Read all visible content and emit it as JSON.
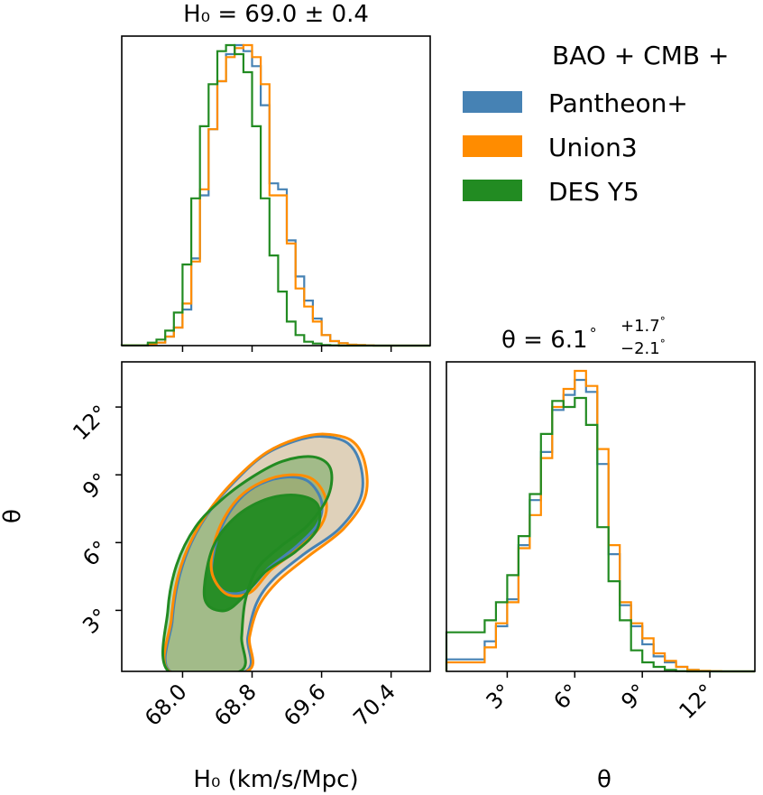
{
  "chart_data": {
    "type": "corner",
    "legend": {
      "title": "BAO + CMB +",
      "entries": [
        "Pantheon+",
        "Union3",
        "DES Y5"
      ],
      "placement": "top-right"
    },
    "colors": {
      "Pantheon+": "#4682b4",
      "Union3": "#ff8c00",
      "DES Y5": "#228b22"
    },
    "h0_title": "H₀ = 69.0 ± 0.4",
    "theta_title": {
      "main": "θ = 6.1",
      "plus": "+1.7",
      "minus": "−2.1",
      "unit": "°"
    },
    "xlabel_h0": "H₀ (km/s/Mpc)",
    "xlabel_theta": "θ",
    "ylabel_theta": "θ",
    "h0_range": [
      67.3,
      70.85
    ],
    "theta_range": [
      0.3,
      14.0
    ],
    "h0_ticks": [
      "68.0",
      "68.8",
      "69.6",
      "70.4"
    ],
    "theta_ticks": [
      "3°",
      "6°",
      "9°",
      "12°"
    ],
    "h0_hist": {
      "edges": [
        67.3,
        67.6,
        67.7,
        67.8,
        67.9,
        68.0,
        68.1,
        68.2,
        68.3,
        68.4,
        68.5,
        68.6,
        68.7,
        68.8,
        68.9,
        69.0,
        69.1,
        69.2,
        69.3,
        69.4,
        69.5,
        69.6,
        69.7,
        69.8,
        69.9,
        70.0,
        70.1,
        70.2,
        70.85
      ],
      "series": [
        {
          "name": "Pantheon+",
          "values": [
            0.1,
            0.5,
            1.0,
            3.0,
            6.0,
            12.0,
            29.0,
            50.0,
            72.0,
            88.0,
            97.0,
            100.0,
            98.0,
            93.0,
            80.0,
            54.0,
            52.0,
            35.0,
            23.0,
            15.0,
            9.0,
            3.5,
            1.5,
            0.8,
            0.3,
            0.2,
            0.1,
            0.0
          ]
        },
        {
          "name": "Union3",
          "values": [
            0.1,
            0.5,
            1.0,
            3.0,
            6.0,
            14.0,
            28.0,
            52.0,
            72.0,
            88.0,
            96.0,
            99.0,
            100.0,
            96.0,
            87.0,
            50.0,
            50.0,
            34.0,
            19.0,
            13.0,
            8.0,
            3.5,
            1.5,
            0.8,
            0.3,
            0.2,
            0.1,
            0.0
          ]
        },
        {
          "name": "DES Y5",
          "values": [
            0.1,
            1.0,
            2.0,
            5.0,
            11.0,
            27.0,
            49.0,
            73.0,
            87.0,
            98.0,
            100.0,
            97.0,
            91.0,
            73.0,
            49.0,
            30.0,
            18.0,
            8.0,
            3.5,
            1.3,
            0.7,
            0.2,
            0.1,
            0.0,
            0.0,
            0.0,
            0.0,
            0.0
          ]
        }
      ]
    },
    "theta_hist": {
      "edges": [
        0.3,
        2.0,
        2.5,
        3.0,
        3.5,
        4.0,
        4.5,
        5.0,
        5.5,
        6.0,
        6.5,
        7.0,
        7.5,
        8.0,
        8.5,
        9.0,
        9.5,
        10.0,
        10.5,
        11.0,
        11.5,
        12.0,
        12.5,
        14.0
      ],
      "series": [
        {
          "name": "Pantheon+",
          "values": [
            4.0,
            10.0,
            15.0,
            24.0,
            42.0,
            57.0,
            73.0,
            87.0,
            92.0,
            97.0,
            93.0,
            69.0,
            39.0,
            22.0,
            15.0,
            9.0,
            5.0,
            3.0,
            1.5,
            0.5,
            0.1,
            0.0,
            0.0
          ]
        },
        {
          "name": "Union3",
          "values": [
            3.0,
            8.0,
            16.0,
            23.0,
            41.0,
            52.0,
            71.0,
            88.0,
            94.0,
            100.0,
            95.0,
            74.0,
            42.0,
            23.0,
            16.0,
            11.0,
            6.0,
            3.5,
            1.5,
            0.5,
            0.2,
            0.1,
            0.0
          ]
        },
        {
          "name": "DES Y5",
          "values": [
            13.0,
            17.0,
            23.0,
            32.0,
            45.0,
            59.0,
            79.0,
            90.0,
            88.0,
            91.0,
            82.0,
            48.0,
            30.0,
            17.0,
            7.0,
            3.0,
            1.5,
            0.5,
            0.1,
            0.0,
            0.0,
            0.0,
            0.0
          ]
        }
      ]
    },
    "contours": [
      {
        "name": "Pantheon+",
        "level": "outer",
        "points": [
          [
            67.86,
            0.3
          ],
          [
            67.88,
            2.5
          ],
          [
            67.95,
            4.3
          ],
          [
            68.1,
            6.0
          ],
          [
            68.35,
            7.6
          ],
          [
            68.65,
            8.9
          ],
          [
            68.95,
            9.9
          ],
          [
            69.3,
            10.5
          ],
          [
            69.6,
            10.7
          ],
          [
            69.9,
            10.4
          ],
          [
            70.05,
            9.4
          ],
          [
            70.05,
            8.0
          ],
          [
            69.8,
            6.6
          ],
          [
            69.4,
            5.5
          ],
          [
            69.05,
            4.4
          ],
          [
            68.85,
            3.3
          ],
          [
            68.75,
            1.8
          ],
          [
            68.72,
            0.3
          ]
        ]
      },
      {
        "name": "Pantheon+",
        "level": "inner",
        "points": [
          [
            68.35,
            5.4
          ],
          [
            68.45,
            6.7
          ],
          [
            68.65,
            7.9
          ],
          [
            68.9,
            8.6
          ],
          [
            69.2,
            8.9
          ],
          [
            69.45,
            8.7
          ],
          [
            69.6,
            7.8
          ],
          [
            69.55,
            6.8
          ],
          [
            69.3,
            5.8
          ],
          [
            69.0,
            4.9
          ],
          [
            68.75,
            3.9
          ],
          [
            68.5,
            3.8
          ],
          [
            68.35,
            4.5
          ]
        ]
      },
      {
        "name": "Union3",
        "level": "outer",
        "points": [
          [
            67.85,
            0.3
          ],
          [
            67.87,
            2.6
          ],
          [
            67.94,
            4.4
          ],
          [
            68.1,
            6.1
          ],
          [
            68.36,
            7.7
          ],
          [
            68.66,
            9.0
          ],
          [
            68.97,
            10.0
          ],
          [
            69.32,
            10.6
          ],
          [
            69.63,
            10.8
          ],
          [
            69.95,
            10.5
          ],
          [
            70.1,
            9.5
          ],
          [
            70.1,
            8.0
          ],
          [
            69.85,
            6.6
          ],
          [
            69.45,
            5.4
          ],
          [
            69.1,
            4.3
          ],
          [
            68.88,
            3.2
          ],
          [
            68.77,
            1.8
          ],
          [
            68.74,
            0.3
          ]
        ]
      },
      {
        "name": "Union3",
        "level": "inner",
        "points": [
          [
            68.34,
            5.5
          ],
          [
            68.44,
            6.8
          ],
          [
            68.65,
            8.0
          ],
          [
            68.92,
            8.7
          ],
          [
            69.23,
            9.0
          ],
          [
            69.5,
            8.8
          ],
          [
            69.65,
            7.9
          ],
          [
            69.6,
            6.8
          ],
          [
            69.32,
            5.7
          ],
          [
            69.02,
            4.8
          ],
          [
            68.78,
            3.8
          ],
          [
            68.52,
            3.7
          ],
          [
            68.35,
            4.5
          ]
        ]
      },
      {
        "name": "DES Y5",
        "level": "outer",
        "points": [
          [
            67.84,
            0.3
          ],
          [
            67.83,
            3.0
          ],
          [
            67.93,
            5.0
          ],
          [
            68.15,
            6.7
          ],
          [
            68.45,
            7.9
          ],
          [
            68.8,
            8.9
          ],
          [
            69.15,
            9.6
          ],
          [
            69.5,
            9.8
          ],
          [
            69.7,
            9.3
          ],
          [
            69.68,
            8.1
          ],
          [
            69.45,
            6.8
          ],
          [
            69.12,
            5.8
          ],
          [
            68.85,
            4.8
          ],
          [
            68.72,
            3.4
          ],
          [
            68.68,
            1.8
          ],
          [
            68.66,
            0.3
          ]
        ]
      },
      {
        "name": "DES Y5",
        "level": "inner",
        "points": [
          [
            68.25,
            4.0
          ],
          [
            68.35,
            5.8
          ],
          [
            68.6,
            7.1
          ],
          [
            68.95,
            7.9
          ],
          [
            69.3,
            8.1
          ],
          [
            69.55,
            7.7
          ],
          [
            69.55,
            6.6
          ],
          [
            69.3,
            5.6
          ],
          [
            68.95,
            4.7
          ],
          [
            68.7,
            3.6
          ],
          [
            68.5,
            3.0
          ],
          [
            68.3,
            3.2
          ]
        ]
      }
    ]
  }
}
